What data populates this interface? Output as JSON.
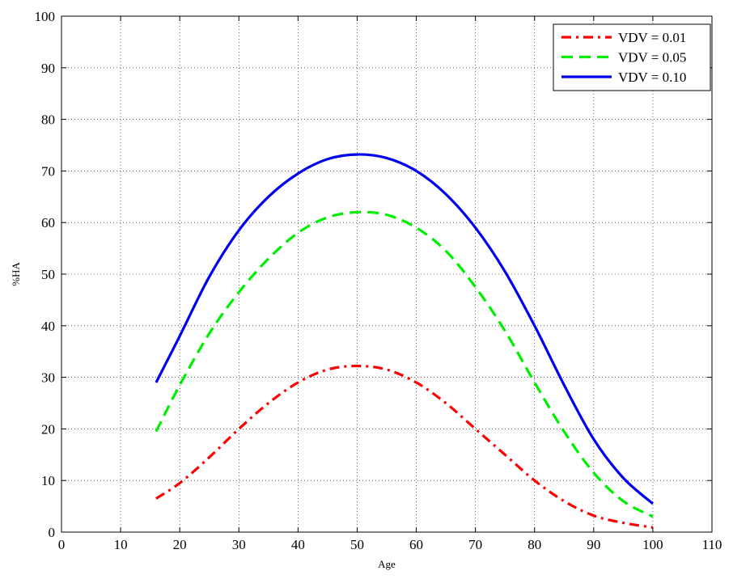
{
  "chart_data": {
    "type": "line",
    "title": "",
    "xlabel": "Age",
    "ylabel": "%HA",
    "xlim": [
      0,
      110
    ],
    "ylim": [
      0,
      100
    ],
    "xticks": [
      "0",
      "10",
      "20",
      "30",
      "40",
      "50",
      "60",
      "70",
      "80",
      "90",
      "100",
      "110"
    ],
    "yticks": [
      "0",
      "10",
      "20",
      "30",
      "40",
      "50",
      "60",
      "70",
      "80",
      "90",
      "100"
    ],
    "grid": true,
    "legend_position": "top-right",
    "x": [
      16,
      20,
      25,
      30,
      35,
      40,
      45,
      50,
      55,
      60,
      65,
      70,
      75,
      80,
      85,
      90,
      95,
      100
    ],
    "series": [
      {
        "name": "VDV = 0.01",
        "color": "#ff0000",
        "dash": "dash-dot",
        "values": [
          6.5,
          9.5,
          14.5,
          20,
          25,
          29,
          31.5,
          32.2,
          31.5,
          29,
          25,
          20,
          15,
          10,
          6,
          3.2,
          1.8,
          0.9
        ]
      },
      {
        "name": "VDV = 0.05",
        "color": "#00ee00",
        "dash": "dashed",
        "values": [
          19.5,
          28.5,
          38.5,
          46.5,
          53,
          58,
          61,
          62,
          61.5,
          59,
          54.5,
          47.5,
          39,
          29,
          19.5,
          11.5,
          6,
          3
        ]
      },
      {
        "name": "VDV = 0.10",
        "color": "#0000ee",
        "dash": "solid",
        "values": [
          29,
          38,
          49.5,
          58.5,
          65,
          69.5,
          72.3,
          73.2,
          72.5,
          70,
          65.5,
          59,
          50.5,
          40,
          28.5,
          18,
          10.5,
          5.5
        ]
      }
    ]
  }
}
